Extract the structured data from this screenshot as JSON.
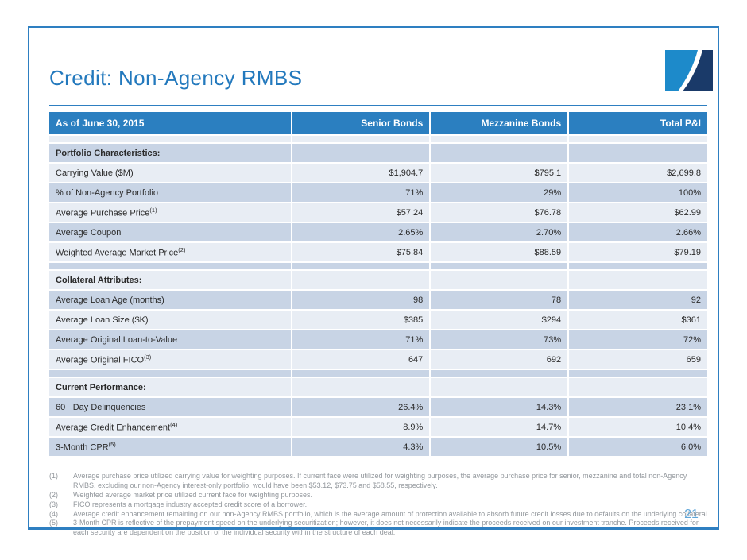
{
  "slide": {
    "title": "Credit: Non-Agency RMBS",
    "page_number": "21"
  },
  "colors": {
    "frame_border_blue": "#2e7fc1",
    "title_blue": "#2379bd",
    "table_header_blue": "#2b7fc0",
    "row_light": "#e8edf4",
    "row_dark": "#c8d4e5",
    "footnote_gray": "#92979c",
    "page_number_blue": "#5fa6d9",
    "logo_light_blue": "#1d8aca",
    "logo_navy": "#1a3a69"
  },
  "table": {
    "columns": [
      "As of June 30, 2015",
      "Senior Bonds",
      "Mezzanine Bonds",
      "Total P&I"
    ],
    "rows": [
      {
        "type": "spacer",
        "shade": "light"
      },
      {
        "type": "section",
        "shade": "dark",
        "label": "Portfolio Characteristics:"
      },
      {
        "type": "data",
        "shade": "light",
        "label": "Carrying Value ($M)",
        "sup": "",
        "values": [
          "$1,904.7",
          "$795.1",
          "$2,699.8"
        ]
      },
      {
        "type": "data",
        "shade": "dark",
        "label": "% of Non-Agency Portfolio",
        "sup": "",
        "values": [
          "71%",
          "29%",
          "100%"
        ]
      },
      {
        "type": "data",
        "shade": "light",
        "label": "Average Purchase Price",
        "sup": "(1)",
        "values": [
          "$57.24",
          "$76.78",
          "$62.99"
        ]
      },
      {
        "type": "data",
        "shade": "dark",
        "label": "Average Coupon",
        "sup": "",
        "values": [
          "2.65%",
          "2.70%",
          "2.66%"
        ]
      },
      {
        "type": "data",
        "shade": "light",
        "label": "Weighted Average Market Price",
        "sup": "(2)",
        "values": [
          "$75.84",
          "$88.59",
          "$79.19"
        ]
      },
      {
        "type": "spacer",
        "shade": "dark"
      },
      {
        "type": "section",
        "shade": "light",
        "label": "Collateral Attributes:"
      },
      {
        "type": "data",
        "shade": "dark",
        "label": "Average Loan Age (months)",
        "sup": "",
        "values": [
          "98",
          "78",
          "92"
        ]
      },
      {
        "type": "data",
        "shade": "light",
        "label": "Average Loan Size ($K)",
        "sup": "",
        "values": [
          "$385",
          "$294",
          "$361"
        ]
      },
      {
        "type": "data",
        "shade": "dark",
        "label": "Average Original Loan-to-Value",
        "sup": "",
        "values": [
          "71%",
          "73%",
          "72%"
        ]
      },
      {
        "type": "data",
        "shade": "light",
        "label": "Average Original FICO",
        "sup": "(3)",
        "values": [
          "647",
          "692",
          "659"
        ]
      },
      {
        "type": "spacer",
        "shade": "dark"
      },
      {
        "type": "section",
        "shade": "light",
        "label": "Current Performance:"
      },
      {
        "type": "data",
        "shade": "dark",
        "label": "60+ Day Delinquencies",
        "sup": "",
        "values": [
          "26.4%",
          "14.3%",
          "23.1%"
        ]
      },
      {
        "type": "data",
        "shade": "light",
        "label": "Average Credit Enhancement",
        "sup": "(4)",
        "values": [
          "8.9%",
          "14.7%",
          "10.4%"
        ]
      },
      {
        "type": "data",
        "shade": "dark",
        "label": "3-Month CPR",
        "sup": "(5)",
        "values": [
          "4.3%",
          "10.5%",
          "6.0%"
        ]
      }
    ]
  },
  "footnotes": [
    {
      "num": "(1)",
      "text": "Average purchase price utilized carrying value for weighting purposes. If current face were utilized for weighting purposes, the average purchase price for senior, mezzanine and total non-Agency RMBS, excluding our non-Agency interest-only portfolio, would have been $53.12, $73.75 and $58.55, respectively."
    },
    {
      "num": "(2)",
      "text": "Weighted average market price utilized current face for weighting purposes."
    },
    {
      "num": "(3)",
      "text": "FICO represents a mortgage industry accepted credit score of a borrower."
    },
    {
      "num": "(4)",
      "text": "Average credit enhancement remaining on our non-Agency RMBS portfolio, which is the average amount of protection available to absorb future credit losses due to defaults on the underlying collateral."
    },
    {
      "num": "(5)",
      "text": "3-Month CPR is reflective of the prepayment speed on the underlying securitization; however, it does not necessarily indicate the proceeds received on our investment tranche. Proceeds received for each security are dependent on the position of the individual security within the structure of each deal."
    }
  ]
}
